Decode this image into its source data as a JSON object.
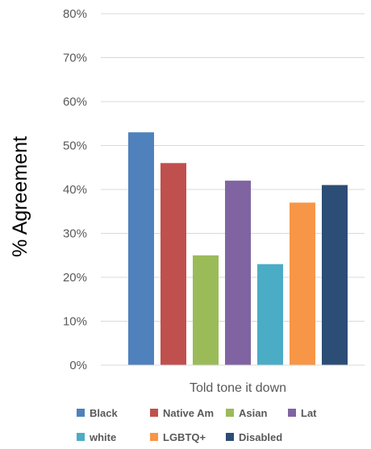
{
  "chart_data": {
    "type": "bar",
    "title": "",
    "ylabel": "% Agreement",
    "xlabel": "",
    "categories": [
      "Told tone it down"
    ],
    "ylim": [
      0,
      80
    ],
    "yticks": [
      0,
      10,
      20,
      30,
      40,
      50,
      60,
      70,
      80
    ],
    "ytick_labels": [
      "0%",
      "10%",
      "20%",
      "30%",
      "40%",
      "50%",
      "60%",
      "70%",
      "80%"
    ],
    "grid": true,
    "legend_position": "bottom",
    "series": [
      {
        "name": "Black",
        "values": [
          53
        ],
        "color": "#4F81BD"
      },
      {
        "name": "Native Am",
        "values": [
          46
        ],
        "color": "#C0504D"
      },
      {
        "name": "Asian",
        "values": [
          25
        ],
        "color": "#9BBB59"
      },
      {
        "name": "Lat",
        "values": [
          42
        ],
        "color": "#8064A2"
      },
      {
        "name": "white",
        "values": [
          23
        ],
        "color": "#4BACC6"
      },
      {
        "name": "LGBTQ+",
        "values": [
          37
        ],
        "color": "#F79646"
      },
      {
        "name": "Disabled",
        "values": [
          41
        ],
        "color": "#2C4D75"
      }
    ]
  }
}
